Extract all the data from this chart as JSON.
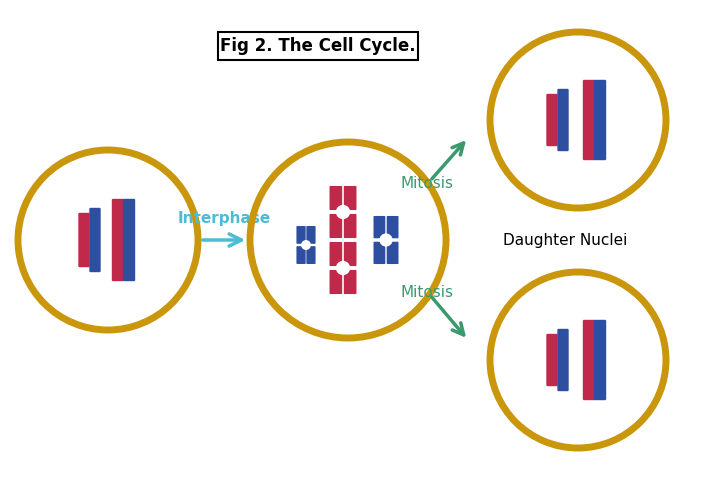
{
  "bg_color": "#ffffff",
  "circle_color": "#C9960C",
  "circle_lw": 5,
  "red_color": "#C0294A",
  "blue_color": "#2E4EA0",
  "arrow_color": "#4BBCD6",
  "green_arrow_color": "#3A9A6E",
  "label_interphase": "Interphase",
  "label_mitosis_top": "Mitosis",
  "label_mitosis_bot": "Mitosis",
  "label_daughter": "Daughter Nuclei",
  "caption": "Fig 2. The Cell Cycle.",
  "caption_fontsize": 12,
  "label_fontsize": 11,
  "interphase_fontsize": 11
}
